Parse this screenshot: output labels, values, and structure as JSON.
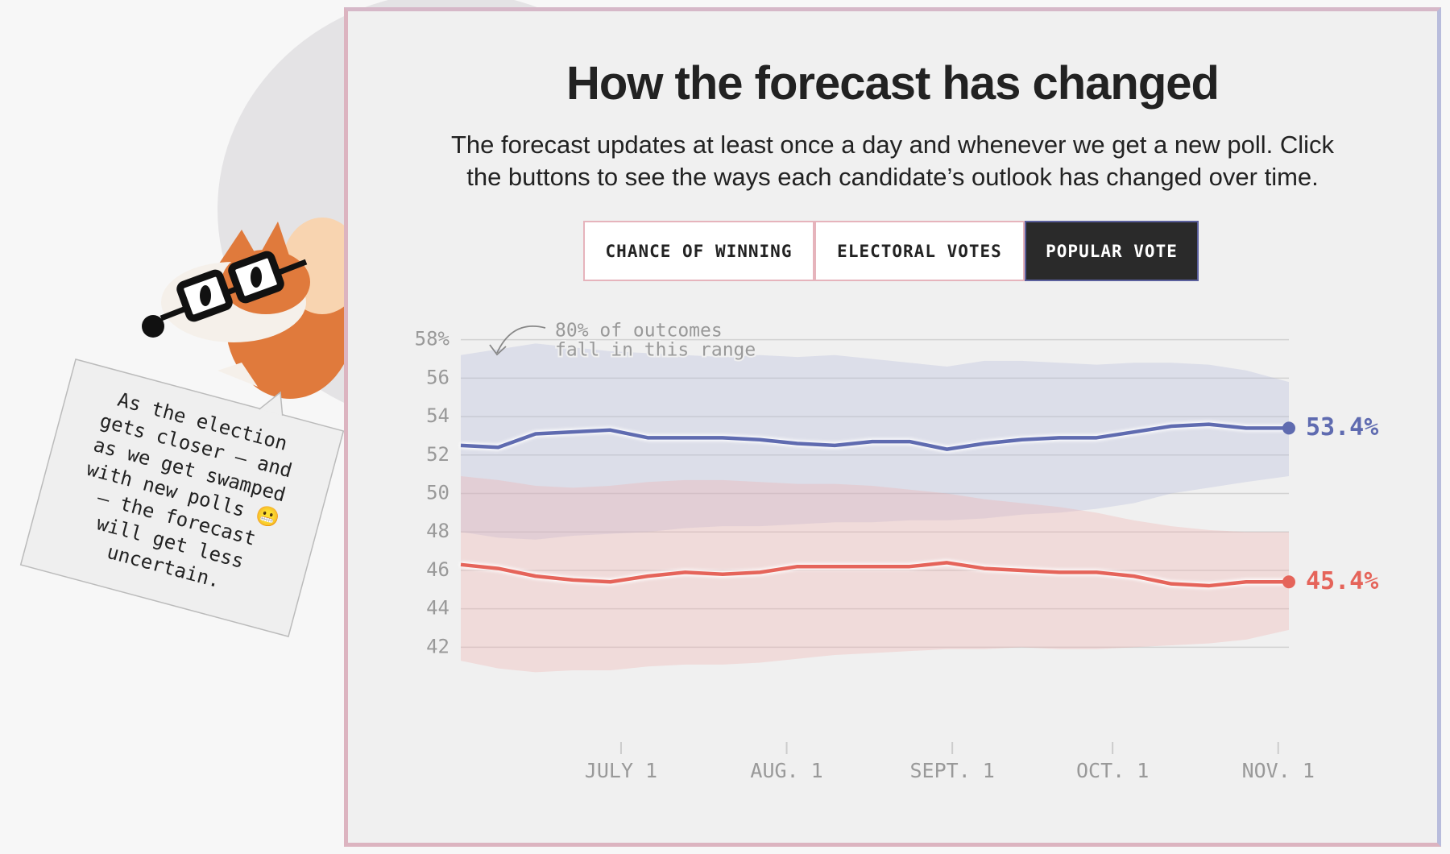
{
  "header": {
    "title": "How the forecast has changed",
    "subtitle": [
      "The forecast updates at least once a day and whenever we get a new poll. Click",
      "the buttons to see the ways each candidate’s outlook has changed over time."
    ]
  },
  "buttons": [
    "CHANCE OF WINNING",
    "ELECTORAL VOTES",
    "POPULAR VOTE"
  ],
  "active_button": "POPULAR VOTE",
  "callout": [
    "As the election",
    "gets closer — and",
    "as we get swamped",
    "with new polls 😬",
    "— the forecast",
    "will get less",
    "uncertain."
  ],
  "chart_data": {
    "type": "band-line",
    "annotation": [
      "80% of outcomes",
      "fall in this range"
    ],
    "x": [
      "06-01",
      "06-08",
      "06-15",
      "06-22",
      "06-29",
      "07-06",
      "07-13",
      "07-20",
      "07-27",
      "08-03",
      "08-10",
      "08-17",
      "08-24",
      "08-31",
      "09-07",
      "09-14",
      "09-21",
      "09-28",
      "10-05",
      "10-12",
      "10-19",
      "10-26",
      "11-03"
    ],
    "xlim": [
      "06-01",
      "11-03"
    ],
    "xticks": [
      {
        "value": "07-01",
        "label": "JULY 1"
      },
      {
        "value": "08-01",
        "label": "AUG. 1"
      },
      {
        "value": "09-01",
        "label": "SEPT. 1"
      },
      {
        "value": "10-01",
        "label": "OCT. 1"
      },
      {
        "value": "11-01",
        "label": "NOV. 1"
      }
    ],
    "ylim": [
      40.5,
      58.5
    ],
    "yticks": [
      {
        "value": 58,
        "label": "58%"
      },
      56,
      54,
      52,
      50,
      48,
      46,
      44,
      42
    ],
    "grid": true,
    "series": [
      {
        "color": "#5f6bb0",
        "band_color": "rgba(178,184,218,0.32)",
        "values": [
          52.5,
          52.4,
          53.1,
          53.2,
          53.3,
          52.9,
          52.9,
          52.9,
          52.8,
          52.6,
          52.5,
          52.7,
          52.7,
          52.3,
          52.6,
          52.8,
          52.9,
          52.9,
          53.2,
          53.5,
          53.6,
          53.4,
          53.4
        ],
        "high": [
          57.2,
          57.5,
          57.8,
          57.6,
          57.4,
          57.3,
          57.2,
          57.1,
          57.2,
          57.1,
          57.2,
          57.0,
          56.8,
          56.6,
          56.9,
          56.9,
          56.8,
          56.7,
          56.8,
          56.8,
          56.7,
          56.4,
          55.8
        ],
        "low": [
          48.0,
          47.7,
          47.6,
          47.8,
          47.9,
          48.0,
          48.2,
          48.3,
          48.3,
          48.4,
          48.5,
          48.5,
          48.6,
          48.6,
          48.7,
          48.9,
          49.0,
          49.2,
          49.5,
          50.0,
          50.3,
          50.6,
          50.9
        ],
        "value_labels": [
          null,
          null,
          null,
          null,
          null,
          null,
          null,
          null,
          null,
          null,
          null,
          null,
          null,
          null,
          null,
          null,
          null,
          null,
          null,
          null,
          null,
          null,
          "53.4%"
        ]
      },
      {
        "color": "#e5645a",
        "band_color": "rgba(240,175,170,0.32)",
        "values": [
          46.3,
          46.1,
          45.7,
          45.5,
          45.4,
          45.7,
          45.9,
          45.8,
          45.9,
          46.2,
          46.2,
          46.2,
          46.2,
          46.4,
          46.1,
          46.0,
          45.9,
          45.9,
          45.7,
          45.3,
          45.2,
          45.4,
          45.4
        ],
        "high": [
          50.9,
          50.7,
          50.4,
          50.3,
          50.4,
          50.6,
          50.7,
          50.7,
          50.6,
          50.5,
          50.5,
          50.4,
          50.2,
          50.0,
          49.7,
          49.5,
          49.3,
          49.0,
          48.6,
          48.3,
          48.1,
          48.0,
          48.0
        ],
        "low": [
          41.3,
          40.9,
          40.7,
          40.8,
          40.8,
          41.0,
          41.1,
          41.1,
          41.2,
          41.4,
          41.6,
          41.7,
          41.8,
          41.9,
          41.9,
          42.0,
          41.9,
          41.9,
          42.0,
          42.1,
          42.2,
          42.4,
          42.9
        ],
        "value_labels": [
          null,
          null,
          null,
          null,
          null,
          null,
          null,
          null,
          null,
          null,
          null,
          null,
          null,
          null,
          null,
          null,
          null,
          null,
          null,
          null,
          null,
          null,
          "45.4%"
        ]
      }
    ]
  }
}
